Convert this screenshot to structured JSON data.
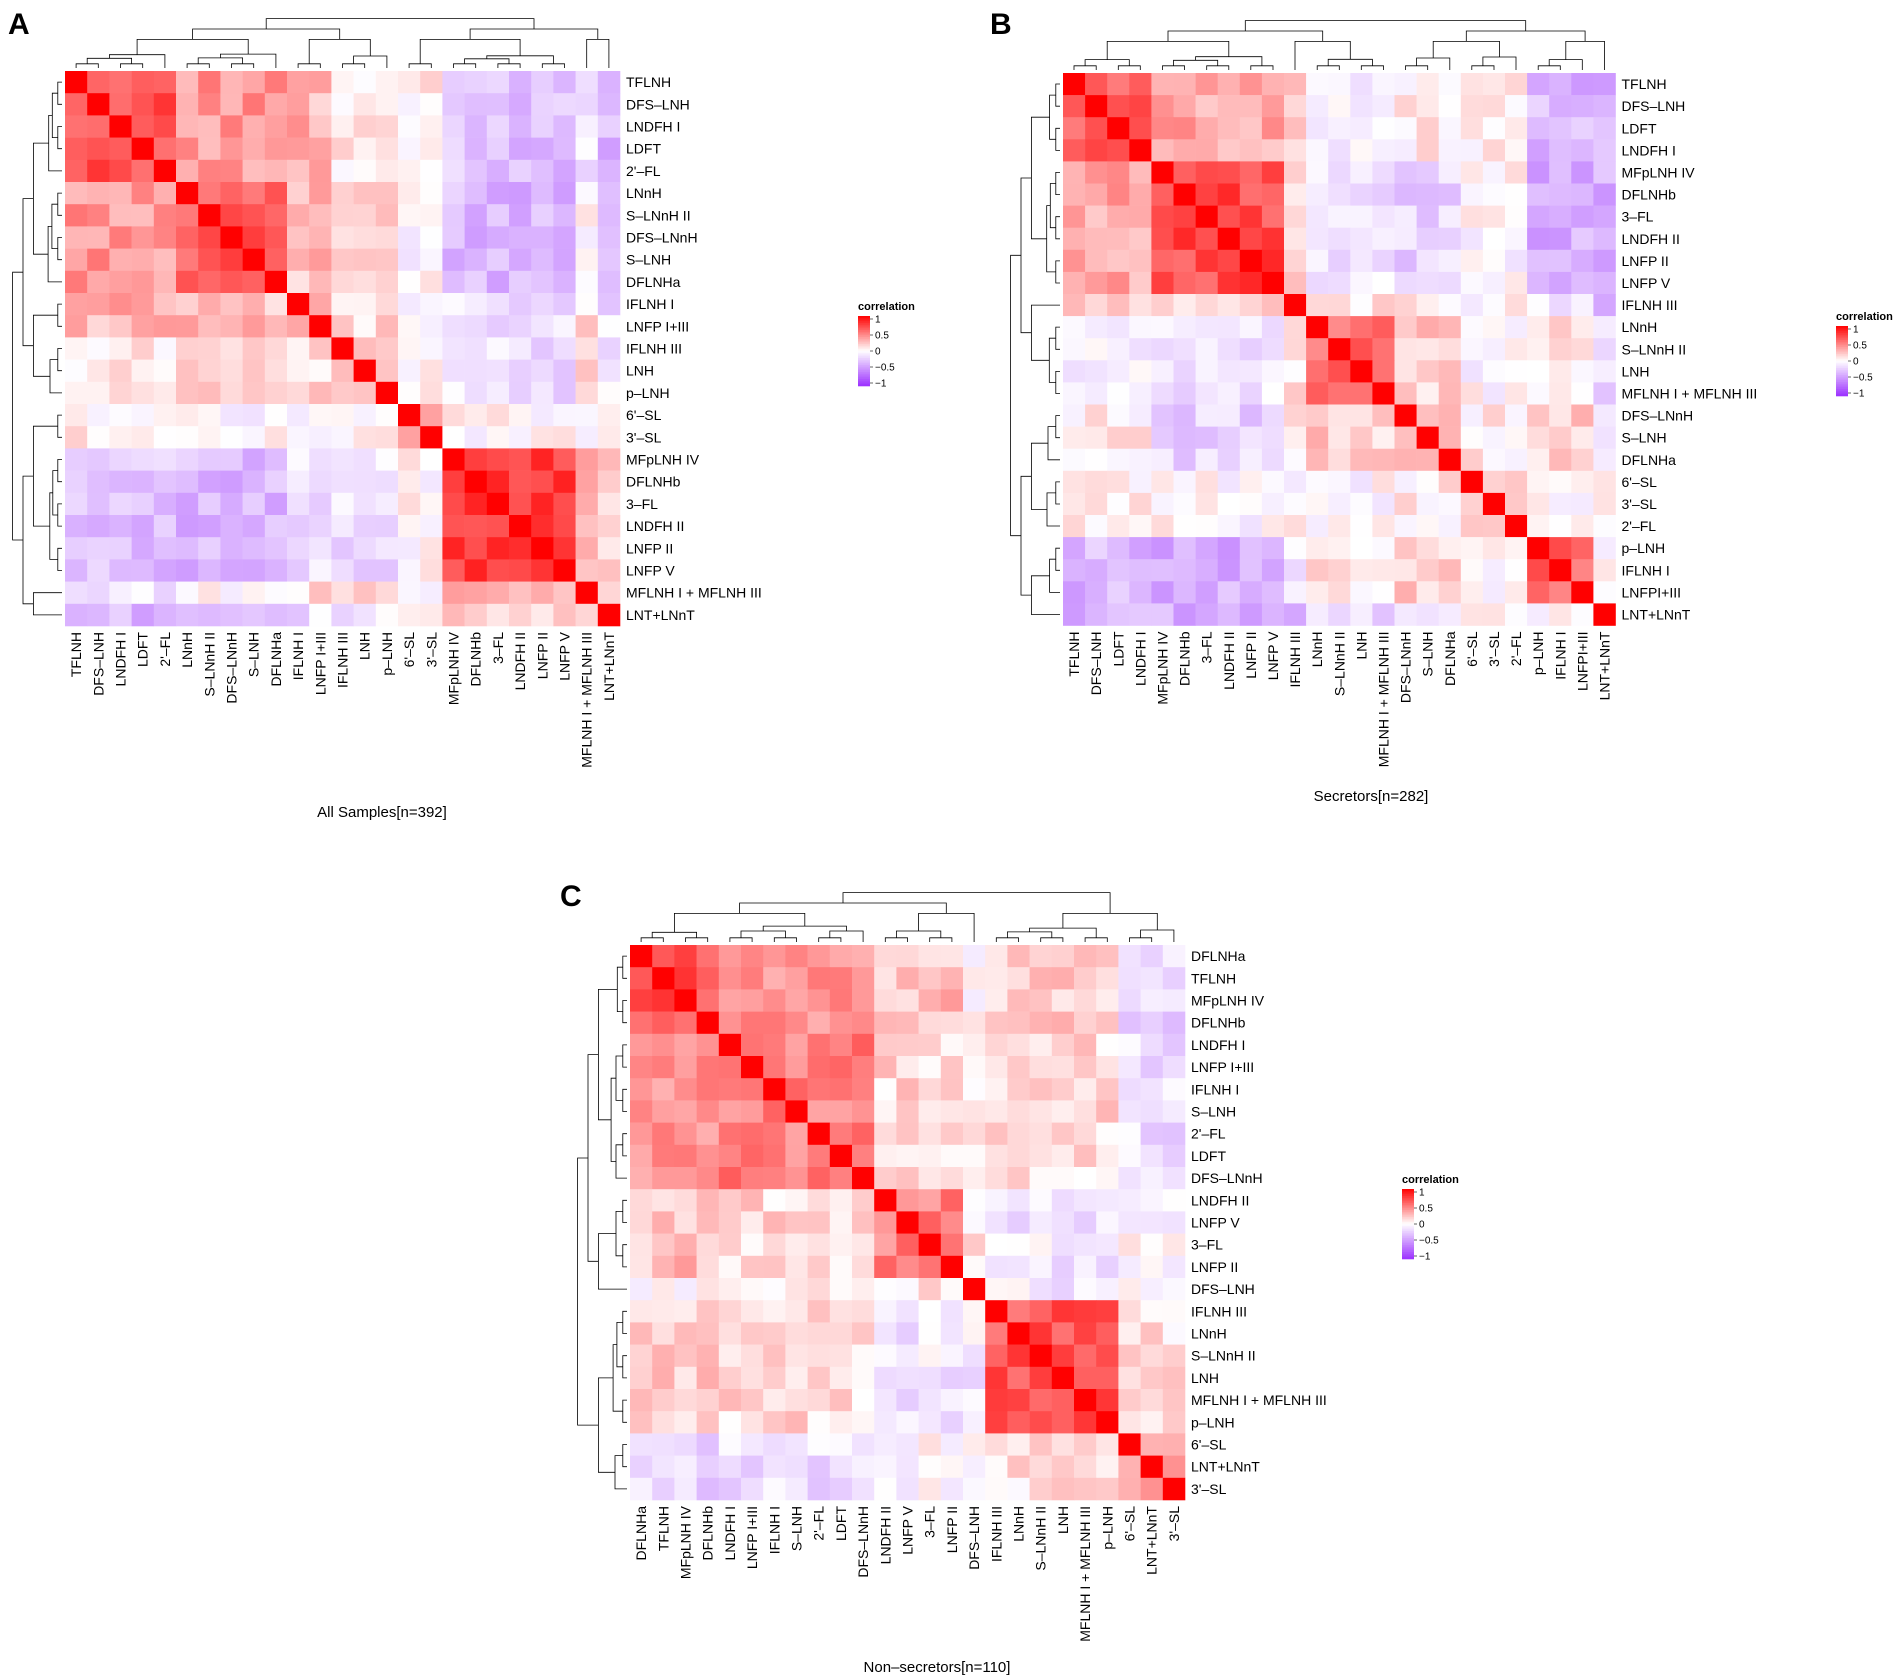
{
  "figure": {
    "legend_title": "correlation",
    "legend_ticks": [
      "1",
      "0.5",
      "0",
      "−0.5",
      "−1"
    ],
    "colors": {
      "low": "#9B30FF",
      "mid": "#FFFFFF",
      "high": "#FF0000",
      "dendrogram": "#000000"
    }
  },
  "chart_data": [
    {
      "type": "heatmap",
      "panel": "A",
      "title": "All Samples[n=392]",
      "value_range": [
        -1,
        1
      ],
      "labels": [
        "TFLNH",
        "DFS–LNH",
        "LNDFH I",
        "LDFT",
        "2'–FL",
        "LNnH",
        "S–LNnH II",
        "DFS–LNnH",
        "S–LNH",
        "DFLNHa",
        "IFLNH I",
        "LNFP I+III",
        "IFLNH III",
        "LNH",
        "p–LNH",
        "6'–SL",
        "3'–SL",
        "MFpLNH IV",
        "DFLNHb",
        "3–FL",
        "LNDFH II",
        "LNFP II",
        "LNFP V",
        "MFLNH I + MFLNH III",
        "LNT+LNnT"
      ],
      "groups": [
        5,
        5,
        2,
        3,
        2,
        6,
        1,
        1
      ],
      "within": [
        0.7,
        0.65,
        0.35,
        0.35,
        0.45,
        0.78,
        1,
        1
      ],
      "group_matrix": [
        [
          0.7,
          0.4,
          0.3,
          0.05,
          0.05,
          -0.3,
          -0.15,
          -0.35
        ],
        [
          0.4,
          0.65,
          0.25,
          0.25,
          0.0,
          -0.35,
          0.0,
          -0.2
        ],
        [
          0.3,
          0.25,
          0.35,
          0.15,
          0.0,
          -0.15,
          0.15,
          -0.15
        ],
        [
          0.05,
          0.25,
          0.15,
          0.35,
          0.0,
          -0.15,
          0.1,
          -0.1
        ],
        [
          0.05,
          0.0,
          0.0,
          0.0,
          0.45,
          0.0,
          0.05,
          -0.05
        ],
        [
          -0.3,
          -0.35,
          -0.15,
          -0.15,
          0.0,
          0.78,
          0.3,
          0.15
        ],
        [
          -0.15,
          0.0,
          0.15,
          0.1,
          0.05,
          0.3,
          1.0,
          0.1
        ],
        [
          -0.35,
          -0.2,
          -0.15,
          -0.1,
          -0.05,
          0.15,
          0.1,
          1.0
        ]
      ]
    },
    {
      "type": "heatmap",
      "panel": "B",
      "title": "Secretors[n=282]",
      "value_range": [
        -1,
        1
      ],
      "labels": [
        "TFLNH",
        "DFS–LNH",
        "LDFT",
        "LNDFH I",
        "MFpLNH IV",
        "DFLNHb",
        "3–FL",
        "LNDFH II",
        "LNFP II",
        "LNFP V",
        "IFLNH III",
        "LNnH",
        "S–LNnH II",
        "LNH",
        "MFLNH I + MFLNH III",
        "DFS–LNnH",
        "S–LNH",
        "DFLNHa",
        "6'–SL",
        "3'–SL",
        "2'–FL",
        "p–LNH",
        "IFLNH I",
        "LNFPI+III",
        "LNT+LNnT"
      ],
      "groups": [
        4,
        6,
        1,
        4,
        3,
        3,
        3,
        1
      ],
      "within": [
        0.6,
        0.7,
        1,
        0.55,
        0.35,
        0.2,
        0.6,
        1
      ],
      "group_matrix": [
        [
          0.6,
          0.35,
          0.15,
          -0.05,
          0.05,
          0.05,
          -0.35,
          -0.35
        ],
        [
          0.35,
          0.7,
          0.15,
          -0.15,
          -0.2,
          0.0,
          -0.4,
          -0.4
        ],
        [
          0.15,
          0.15,
          1.0,
          0.1,
          0.1,
          0.0,
          -0.1,
          -0.3
        ],
        [
          -0.05,
          -0.15,
          0.1,
          0.55,
          0.2,
          0.0,
          0.1,
          -0.15
        ],
        [
          0.05,
          -0.2,
          0.1,
          0.2,
          0.35,
          0.05,
          0.2,
          -0.1
        ],
        [
          0.05,
          0.0,
          0.0,
          0.0,
          0.05,
          0.2,
          0.0,
          0.05
        ],
        [
          -0.35,
          -0.4,
          -0.1,
          0.1,
          0.2,
          0.0,
          0.6,
          0.05
        ],
        [
          -0.35,
          -0.4,
          -0.3,
          -0.15,
          -0.1,
          0.05,
          0.05,
          1.0
        ]
      ]
    },
    {
      "type": "heatmap",
      "panel": "C",
      "title": "Non–secretors[n=110]",
      "value_range": [
        -1,
        1
      ],
      "labels": [
        "DFLNHa",
        "TFLNH",
        "MFpLNH IV",
        "DFLNHb",
        "LNDFH I",
        "LNFP I+III",
        "IFLNH I",
        "S–LNH",
        "2'–FL",
        "LDFT",
        "DFS–LNnH",
        "LNDFH II",
        "LNFP V",
        "3–FL",
        "LNFP II",
        "DFS–LNH",
        "IFLNH III",
        "LNnH",
        "S–LNnH II",
        "LNH",
        "MFLNH I + MFLNH III",
        "p–LNH",
        "6'–SL",
        "LNT+LNnT",
        "3'–SL"
      ],
      "groups": [
        4,
        7,
        4,
        1,
        6,
        3
      ],
      "within": [
        0.7,
        0.5,
        0.5,
        1,
        0.65,
        0.35
      ],
      "group_matrix": [
        [
          0.7,
          0.4,
          0.25,
          0.05,
          0.2,
          -0.2
        ],
        [
          0.4,
          0.5,
          0.15,
          0.05,
          0.15,
          -0.15
        ],
        [
          0.25,
          0.15,
          0.5,
          0.1,
          -0.1,
          0.0
        ],
        [
          0.05,
          0.05,
          0.1,
          1.0,
          -0.1,
          0.0
        ],
        [
          0.2,
          0.15,
          -0.1,
          -0.1,
          0.65,
          0.1
        ],
        [
          -0.2,
          -0.15,
          0.0,
          0.0,
          0.1,
          0.35
        ]
      ]
    }
  ]
}
